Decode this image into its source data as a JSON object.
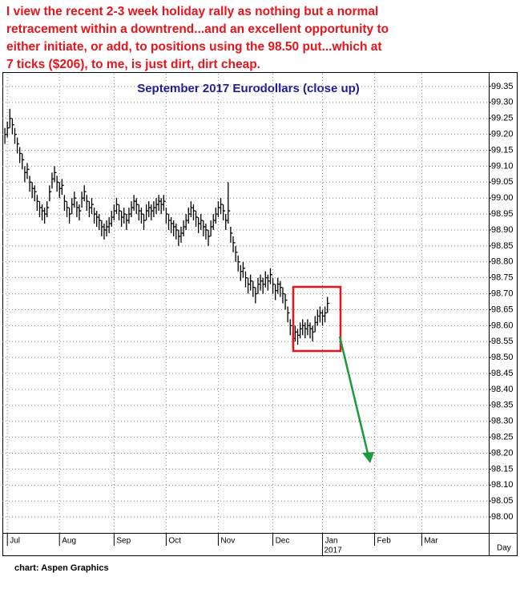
{
  "chart_data": {
    "type": "hlc",
    "annotation": [
      "I view the recent 2-3 week holiday rally as nothing but a normal",
      "retracement within a downtrend...and an excellent opportunity to",
      "either initiate, or add, to positions using the 98.50 put...which at",
      "7 ticks ($206), to me, is just dirt, dirt cheap."
    ],
    "title": "September 2017 Eurodollars (close up)",
    "xlabel": "Day",
    "year_label": "2017",
    "source": "chart: Aspen Graphics",
    "color": "#000000",
    "grid": true,
    "xlim": [
      -1,
      195
    ],
    "xticks": [
      {
        "value": 1,
        "label": "Jul"
      },
      {
        "value": 22,
        "label": "Aug"
      },
      {
        "value": 44,
        "label": "Sep"
      },
      {
        "value": 65,
        "label": "Oct"
      },
      {
        "value": 86,
        "label": "Nov"
      },
      {
        "value": 108,
        "label": "Dec"
      },
      {
        "value": 128,
        "label": "Jan"
      },
      {
        "value": 149,
        "label": "Feb"
      },
      {
        "value": 168,
        "label": "Mar"
      }
    ],
    "ylim": [
      97.95,
      99.39
    ],
    "yticks": [
      {
        "value": 98,
        "label": "98.00"
      },
      98.05,
      {
        "value": 98.1,
        "label": "98.10"
      },
      98.15,
      {
        "value": 98.2,
        "label": "98.20"
      },
      98.25,
      {
        "value": 98.3,
        "label": "98.30"
      },
      98.35,
      {
        "value": 98.4,
        "label": "98.40"
      },
      98.45,
      {
        "value": 98.5,
        "label": "98.50"
      },
      98.55,
      {
        "value": 98.6,
        "label": "98.60"
      },
      98.65,
      {
        "value": 98.7,
        "label": "98.70"
      },
      98.75,
      {
        "value": 98.8,
        "label": "98.80"
      },
      98.85,
      {
        "value": 98.9,
        "label": "98.90"
      },
      98.95,
      {
        "value": 99,
        "label": "99.00"
      },
      99.05,
      {
        "value": 99.1,
        "label": "99.10"
      },
      99.15,
      {
        "value": 99.2,
        "label": "99.20"
      },
      99.25,
      {
        "value": 99.3,
        "label": "99.30"
      },
      99.35
    ],
    "high": [
      99.22,
      99.24,
      99.28,
      99.25,
      99.22,
      99.19,
      99.16,
      99.14,
      99.1,
      99.11,
      99.07,
      99.05,
      99.04,
      99.01,
      98.99,
      98.98,
      98.97,
      98.99,
      99.04,
      99.08,
      99.1,
      99.07,
      99.05,
      99.06,
      99.01,
      98.99,
      98.97,
      99.0,
      99.02,
      98.99,
      98.98,
      99.02,
      99.04,
      99.01,
      98.99,
      99.0,
      98.97,
      98.96,
      98.95,
      98.93,
      98.92,
      98.93,
      98.94,
      98.96,
      98.98,
      99.0,
      98.98,
      98.96,
      98.97,
      98.95,
      98.97,
      98.99,
      99.01,
      99.0,
      98.98,
      98.97,
      98.95,
      98.98,
      98.99,
      98.98,
      98.99,
      99.0,
      99.01,
      99.0,
      99.01,
      98.97,
      98.95,
      98.94,
      98.93,
      98.92,
      98.9,
      98.91,
      98.93,
      98.95,
      98.97,
      98.99,
      98.98,
      98.96,
      98.94,
      98.95,
      98.93,
      98.92,
      98.9,
      98.93,
      98.95,
      98.97,
      98.99,
      99.0,
      98.98,
      98.95,
      99.05,
      98.91,
      98.88,
      98.85,
      98.82,
      98.79,
      98.8,
      98.77,
      98.75,
      98.76,
      98.74,
      98.72,
      98.75,
      98.76,
      98.75,
      98.77,
      98.76,
      98.78,
      98.75,
      98.73,
      98.75,
      98.74,
      98.72,
      98.7,
      98.66,
      98.62,
      98.58,
      98.6,
      98.59,
      98.61,
      98.62,
      98.61,
      98.62,
      98.61,
      98.6,
      98.63,
      98.65,
      98.66,
      98.65,
      98.66,
      98.69
    ],
    "low": [
      99.17,
      99.19,
      99.22,
      99.2,
      99.17,
      99.14,
      99.11,
      99.09,
      99.05,
      99.06,
      99.02,
      99.0,
      98.99,
      98.96,
      98.94,
      98.93,
      98.92,
      98.94,
      98.99,
      99.03,
      99.05,
      99.02,
      99.0,
      99.01,
      98.96,
      98.94,
      98.92,
      98.95,
      98.97,
      98.94,
      98.93,
      98.97,
      98.99,
      98.96,
      98.94,
      98.95,
      98.92,
      98.91,
      98.9,
      98.88,
      98.87,
      98.88,
      98.89,
      98.91,
      98.93,
      98.95,
      98.93,
      98.91,
      98.92,
      98.9,
      98.92,
      98.94,
      98.96,
      98.95,
      98.93,
      98.92,
      98.9,
      98.93,
      98.94,
      98.93,
      98.94,
      98.95,
      98.96,
      98.95,
      98.96,
      98.92,
      98.9,
      98.89,
      98.88,
      98.87,
      98.85,
      98.86,
      98.88,
      98.9,
      98.92,
      98.94,
      98.93,
      98.91,
      98.89,
      98.9,
      98.88,
      98.87,
      98.85,
      98.88,
      98.9,
      98.92,
      98.94,
      98.95,
      98.93,
      98.9,
      98.92,
      98.86,
      98.83,
      98.8,
      98.77,
      98.74,
      98.75,
      98.72,
      98.7,
      98.71,
      98.69,
      98.67,
      98.7,
      98.71,
      98.7,
      98.72,
      98.71,
      98.73,
      98.7,
      98.68,
      98.7,
      98.69,
      98.67,
      98.65,
      98.61,
      98.57,
      98.53,
      98.55,
      98.54,
      98.56,
      98.57,
      98.56,
      98.57,
      98.56,
      98.55,
      98.58,
      98.6,
      98.61,
      98.6,
      98.61,
      98.64
    ],
    "close": [
      99.2,
      99.22,
      99.25,
      99.23,
      99.2,
      99.17,
      99.14,
      99.12,
      99.08,
      99.09,
      99.05,
      99.03,
      99.02,
      98.99,
      98.97,
      98.96,
      98.95,
      98.97,
      99.02,
      99.06,
      99.08,
      99.05,
      99.03,
      99.04,
      98.99,
      98.97,
      98.95,
      98.98,
      99.0,
      98.97,
      98.96,
      99.0,
      99.02,
      98.99,
      98.97,
      98.98,
      98.95,
      98.94,
      98.93,
      98.91,
      98.9,
      98.91,
      98.92,
      98.94,
      98.96,
      98.98,
      98.96,
      98.94,
      98.95,
      98.93,
      98.95,
      98.97,
      98.99,
      98.98,
      98.96,
      98.95,
      98.93,
      98.96,
      98.97,
      98.96,
      98.97,
      98.98,
      98.99,
      98.98,
      98.99,
      98.95,
      98.93,
      98.92,
      98.91,
      98.9,
      98.88,
      98.89,
      98.91,
      98.93,
      98.95,
      98.97,
      98.96,
      98.94,
      98.92,
      98.93,
      98.91,
      98.9,
      98.88,
      98.91,
      98.93,
      98.95,
      98.97,
      98.98,
      98.96,
      98.93,
      98.96,
      98.89,
      98.86,
      98.83,
      98.8,
      98.77,
      98.78,
      98.75,
      98.73,
      98.74,
      98.72,
      98.7,
      98.73,
      98.74,
      98.73,
      98.75,
      98.74,
      98.76,
      98.73,
      98.71,
      98.73,
      98.72,
      98.7,
      98.68,
      98.64,
      98.6,
      98.56,
      98.58,
      98.57,
      98.59,
      98.6,
      98.59,
      98.6,
      98.59,
      98.58,
      98.61,
      98.63,
      98.64,
      98.63,
      98.64,
      98.67
    ]
  }
}
